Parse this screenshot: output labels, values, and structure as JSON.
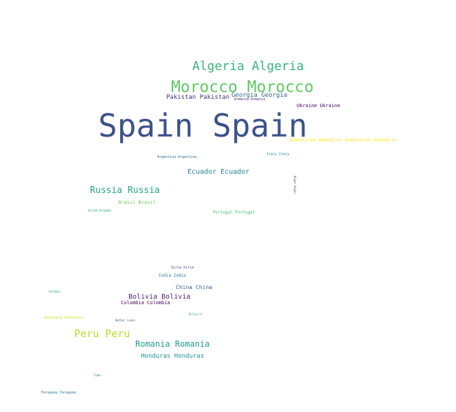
{
  "word_cloud": {
    "words": [
      {
        "text": "Spain Spain",
        "color": "#3b528b"
      },
      {
        "text": "Morocco Morocco",
        "color": "#5ec962"
      },
      {
        "text": "Algeria Algeria",
        "color": "#35b779"
      },
      {
        "text": "Georgia Georgia",
        "color": "#31688e"
      },
      {
        "text": "Pakistan Pakistan",
        "color": "#472d7b"
      },
      {
        "text": "Armenia Armenia",
        "color": "#482878"
      },
      {
        "text": "Ukraine Ukraine",
        "color": "#440154"
      },
      {
        "text": "Dominican_Republic Dominican_Republic",
        "color": "#fde725"
      },
      {
        "text": "Italy Italy",
        "color": "#21918c"
      },
      {
        "text": "Argentina Argentina",
        "color": "#31688e"
      },
      {
        "text": "Ecuador Ecuador",
        "color": "#26828e"
      },
      {
        "text": "Niger Niger",
        "color": "#3e4989"
      },
      {
        "text": "Russia Russia",
        "color": "#21a685"
      },
      {
        "text": "Brasil Brasil",
        "color": "#7ad151"
      },
      {
        "text": "United Kingdom",
        "color": "#1f9e89"
      },
      {
        "text": "Portugal Portugal",
        "color": "#3fbc73"
      },
      {
        "text": "Siria Siria",
        "color": "#443983"
      },
      {
        "text": "India India",
        "color": "#2c728e"
      },
      {
        "text": "China China",
        "color": "#31688e"
      },
      {
        "text": "Bolivia Bolivia",
        "color": "#481f70"
      },
      {
        "text": "Colombia Colombia",
        "color": "#440154"
      },
      {
        "text": "Germany",
        "color": "#1f9e89"
      },
      {
        "text": "Bulgaria",
        "color": "#35b779"
      },
      {
        "text": "Venezuela Venezuela",
        "color": "#c8e020"
      },
      {
        "text": "Nether lands",
        "color": "#355f8d"
      },
      {
        "text": "Peru Peru",
        "color": "#b5de2b"
      },
      {
        "text": "Romania Romania",
        "color": "#1f9e89"
      },
      {
        "text": "Honduras Honduras",
        "color": "#21918c"
      },
      {
        "text": "Cuba",
        "color": "#2a788e"
      },
      {
        "text": "Paraguay Paraguay",
        "color": "#2a788e"
      }
    ]
  }
}
